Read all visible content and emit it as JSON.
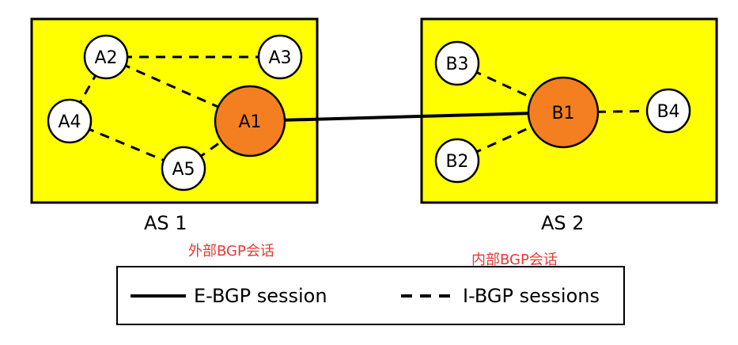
{
  "colors": {
    "as_fill": "#ffff00",
    "router_fill": "#ffffff",
    "border_router_fill": "#f47f20",
    "outline": "#000000",
    "annotation": "#e53935"
  },
  "autonomous_systems": [
    {
      "id": "as1",
      "label": "AS 1"
    },
    {
      "id": "as2",
      "label": "AS 2"
    }
  ],
  "routers": [
    {
      "id": "A1",
      "label": "A1",
      "as": "as1",
      "border": true
    },
    {
      "id": "A2",
      "label": "A2",
      "as": "as1",
      "border": false
    },
    {
      "id": "A3",
      "label": "A3",
      "as": "as1",
      "border": false
    },
    {
      "id": "A4",
      "label": "A4",
      "as": "as1",
      "border": false
    },
    {
      "id": "A5",
      "label": "A5",
      "as": "as1",
      "border": false
    },
    {
      "id": "B1",
      "label": "B1",
      "as": "as2",
      "border": true
    },
    {
      "id": "B2",
      "label": "B2",
      "as": "as2",
      "border": false
    },
    {
      "id": "B3",
      "label": "B3",
      "as": "as2",
      "border": false
    },
    {
      "id": "B4",
      "label": "B4",
      "as": "as2",
      "border": false
    }
  ],
  "links": [
    {
      "from": "A1",
      "to": "B1",
      "type": "E-BGP"
    },
    {
      "from": "A2",
      "to": "A3",
      "type": "I-BGP"
    },
    {
      "from": "A2",
      "to": "A1",
      "type": "I-BGP"
    },
    {
      "from": "A2",
      "to": "A4",
      "type": "I-BGP"
    },
    {
      "from": "A4",
      "to": "A5",
      "type": "I-BGP"
    },
    {
      "from": "A5",
      "to": "A1",
      "type": "I-BGP"
    },
    {
      "from": "B3",
      "to": "B1",
      "type": "I-BGP"
    },
    {
      "from": "B2",
      "to": "B1",
      "type": "I-BGP"
    },
    {
      "from": "B1",
      "to": "B4",
      "type": "I-BGP"
    }
  ],
  "annotations": {
    "external": "外部BGP会话",
    "internal": "内部BGP会话"
  },
  "legend": {
    "ebgp_label": "E-BGP session",
    "ibgp_label": "I-BGP sessions"
  }
}
